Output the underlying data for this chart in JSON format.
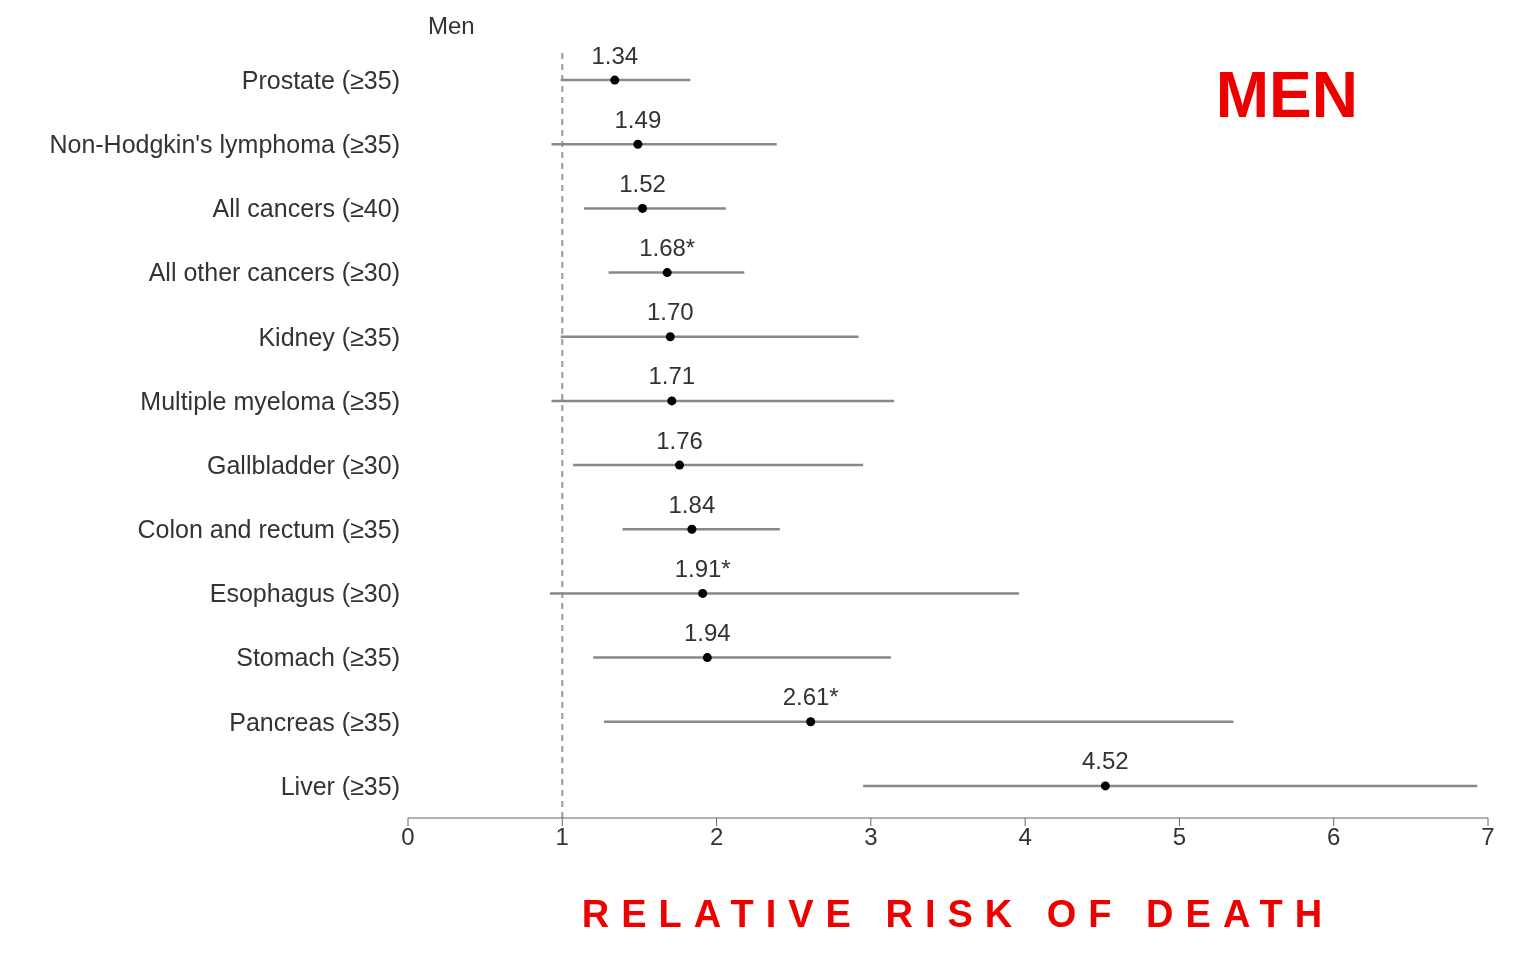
{
  "chart_data": {
    "type": "scatter",
    "title": "MEN",
    "xlabel": "RELATIVE RISK OF DEATH",
    "annotations": [
      "Men"
    ],
    "categories": [
      "Prostate (≥35)",
      "Non-Hodgkin's lymphoma (≥35)",
      "All cancers (≥40)",
      "All other cancers (≥30)",
      "Kidney (≥35)",
      "Multiple myeloma (≥35)",
      "Gallbladder (≥30)",
      "Colon and rectum (≥35)",
      "Esophagus (≥30)",
      "Stomach (≥35)",
      "Pancreas (≥35)",
      "Liver (≥35)"
    ],
    "values": [
      1.34,
      1.49,
      1.52,
      1.68,
      1.7,
      1.71,
      1.76,
      1.84,
      1.91,
      1.94,
      2.61,
      4.52
    ],
    "value_labels": [
      "1.34",
      "1.49",
      "1.52",
      "1.68*",
      "1.70",
      "1.71",
      "1.76",
      "1.84",
      "1.91*",
      "1.94",
      "2.61*",
      "4.52"
    ],
    "errors": [
      [
        0.99,
        1.83
      ],
      [
        0.93,
        2.39
      ],
      [
        1.14,
        2.06
      ],
      [
        1.3,
        2.18
      ],
      [
        0.99,
        2.92
      ],
      [
        0.93,
        3.15
      ],
      [
        1.07,
        2.95
      ],
      [
        1.39,
        2.41
      ],
      [
        0.92,
        3.96
      ],
      [
        1.2,
        3.13
      ],
      [
        1.27,
        5.35
      ],
      [
        2.95,
        6.93
      ]
    ],
    "color": "#000000",
    "orientation": "horizontal",
    "marker": "circle",
    "grid": false,
    "legend": false,
    "xlim": [
      0,
      7
    ],
    "xticks": [
      0,
      1,
      2,
      3,
      4,
      5,
      6,
      7
    ],
    "ref_lines": [
      {
        "axis": "x",
        "value": 1,
        "line_style": "dashed",
        "color": "#999999"
      }
    ]
  }
}
